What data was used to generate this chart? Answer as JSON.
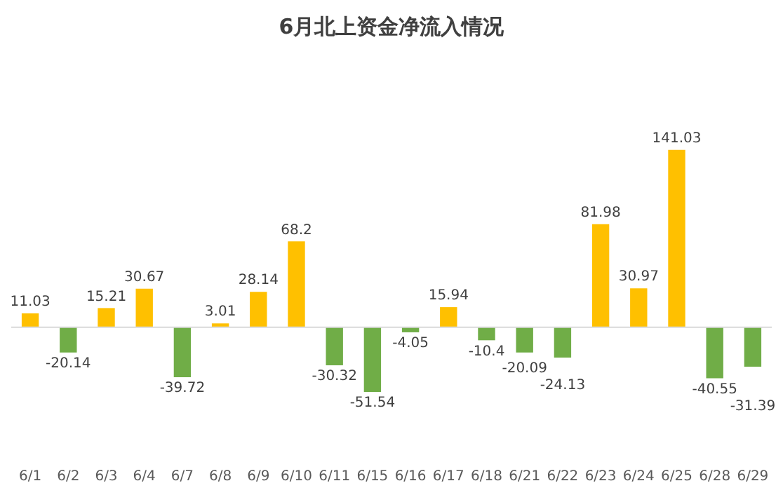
{
  "chart_data": {
    "type": "bar",
    "title": "6月北上资金净流入情况",
    "categories": [
      "6/1",
      "6/2",
      "6/3",
      "6/4",
      "6/7",
      "6/8",
      "6/9",
      "6/10",
      "6/11",
      "6/15",
      "6/16",
      "6/17",
      "6/18",
      "6/21",
      "6/22",
      "6/23",
      "6/24",
      "6/25",
      "6/28",
      "6/29"
    ],
    "values": [
      11.03,
      -20.14,
      15.21,
      30.67,
      -39.72,
      3.01,
      28.14,
      68.2,
      -30.32,
      -51.54,
      -4.05,
      15.94,
      -10.4,
      -20.09,
      -24.13,
      81.98,
      30.97,
      141.03,
      -40.55,
      -31.39
    ],
    "colors": [
      "#ffc000",
      "#70ad47",
      "#ffc000",
      "#ffc000",
      "#70ad47",
      "#ffc000",
      "#ffc000",
      "#ffc000",
      "#70ad47",
      "#70ad47",
      "#70ad47",
      "#ffc000",
      "#70ad47",
      "#70ad47",
      "#70ad47",
      "#ffc000",
      "#ffc000",
      "#ffc000",
      "#70ad47",
      "#70ad47"
    ],
    "data_labels": true,
    "grid": false,
    "legend": false
  }
}
